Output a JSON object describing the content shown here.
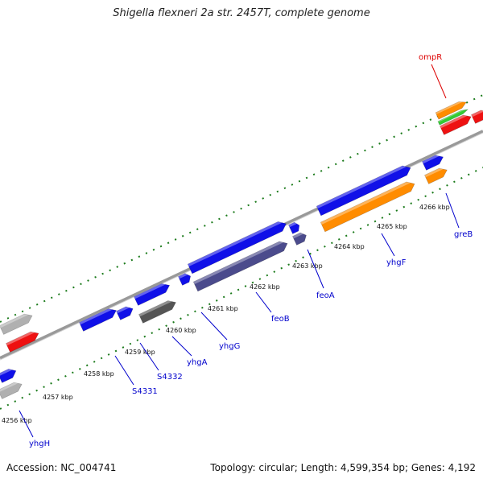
{
  "title": "Shigella flexneri 2a str. 2457T, complete genome",
  "footer": {
    "accession": "Accession: NC_004741",
    "summary": "Topology: circular; Length: 4,599,354 bp; Genes: 4,192"
  },
  "colors": {
    "blue_gene": "#1010e8",
    "orange_gene": "#ff8c00",
    "red_gene": "#ee1111",
    "green_gene": "#33cc33",
    "grey_gene": "#b0b0b0",
    "dark_grey_gene": "#555555",
    "purple_gene": "#4b4b8c",
    "backbone": "#888888",
    "ticks": "#1a7a1a",
    "label_blue": "#0000cc",
    "label_red": "#dd0000"
  },
  "scale_ticks": [
    "4256 kbp",
    "4257 kbp",
    "4258 kbp",
    "4259 kbp",
    "4260 kbp",
    "4261 kbp",
    "4262 kbp",
    "4263 kbp",
    "4264 kbp",
    "4265 kbp",
    "4266 kbp"
  ],
  "gene_labels": [
    {
      "name": "ompR",
      "color": "red"
    },
    {
      "name": "greB",
      "color": "blue"
    },
    {
      "name": "yhgF",
      "color": "blue"
    },
    {
      "name": "feoA",
      "color": "blue"
    },
    {
      "name": "feoB",
      "color": "blue"
    },
    {
      "name": "yhgG",
      "color": "blue"
    },
    {
      "name": "yhgA",
      "color": "blue"
    },
    {
      "name": "S4332",
      "color": "blue"
    },
    {
      "name": "S4331",
      "color": "blue"
    },
    {
      "name": "yhgH",
      "color": "blue"
    }
  ]
}
